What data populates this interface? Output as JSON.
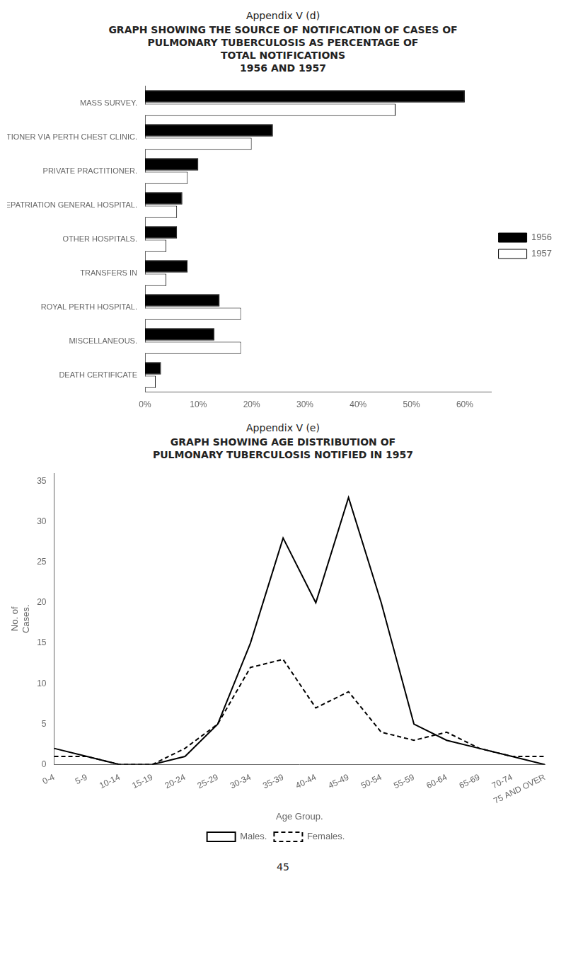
{
  "chart_data": [
    {
      "type": "bar",
      "orientation": "horizontal",
      "subtitle": "Appendix V (d)",
      "title": [
        "GRAPH SHOWING THE SOURCE OF NOTIFICATION OF CASES OF",
        "PULMONARY TUBERCULOSIS AS PERCENTAGE OF",
        "TOTAL NOTIFICATIONS",
        "1956 AND 1957"
      ],
      "categories": [
        "MASS SURVEY.",
        "PRIVATE PRACTITIONER VIA PERTH CHEST CLINIC.",
        "PRIVATE PRACTITIONER.",
        "REPATRIATION GENERAL HOSPITAL.",
        "OTHER HOSPITALS.",
        "TRANSFERS IN",
        "ROYAL PERTH HOSPITAL.",
        "MISCELLANEOUS.",
        "DEATH CERTIFICATE"
      ],
      "series": [
        {
          "name": "1956",
          "color": "#000000",
          "values": [
            60,
            24,
            10,
            7,
            6,
            8,
            14,
            13,
            3
          ]
        },
        {
          "name": "1957",
          "color": "#ffffff",
          "values": [
            47,
            20,
            8,
            6,
            4,
            4,
            18,
            18,
            2
          ]
        }
      ],
      "xlim": [
        0,
        65
      ],
      "xticks": [
        {
          "value": 0,
          "label": "0%"
        },
        {
          "value": 10,
          "label": "10%"
        },
        {
          "value": 20,
          "label": "20%"
        },
        {
          "value": 30,
          "label": "30%"
        },
        {
          "value": 40,
          "label": "40%"
        },
        {
          "value": 50,
          "label": "50%"
        },
        {
          "value": 60,
          "label": "60%"
        }
      ],
      "grid": false,
      "legend": "right"
    },
    {
      "type": "line",
      "subtitle": "Appendix V (e)",
      "title": [
        "GRAPH SHOWING AGE DISTRIBUTION OF",
        "PULMONARY TUBERCULOSIS NOTIFIED IN 1957"
      ],
      "categories": [
        "0-4",
        "5-9",
        "10-14",
        "15-19",
        "20-24",
        "25-29",
        "30-34",
        "35-39",
        "40-44",
        "45-49",
        "50-54",
        "55-59",
        "60-64",
        "65-69",
        "70-74",
        "75 AND OVER"
      ],
      "series": [
        {
          "name": "Males.",
          "color": "#000000",
          "line_style": "solid",
          "values": [
            2,
            1,
            0,
            0,
            1,
            5,
            15,
            28,
            20,
            33,
            20,
            5,
            3,
            2,
            1,
            0
          ]
        },
        {
          "name": "Females.",
          "color": "#000000",
          "line_style": "dashed",
          "values": [
            1,
            1,
            0,
            0,
            2,
            5,
            12,
            13,
            7,
            9,
            4,
            3,
            4,
            2,
            1,
            1
          ]
        }
      ],
      "xlabel": "Age Group.",
      "ylabel": [
        "No. of",
        "Cases."
      ],
      "ylim": [
        0,
        36
      ],
      "yticks": [
        0,
        5,
        10,
        15,
        20,
        25,
        30,
        35
      ],
      "grid": false,
      "legend": "bottom",
      "annotations": [
        {
          "text": "45"
        }
      ]
    }
  ]
}
